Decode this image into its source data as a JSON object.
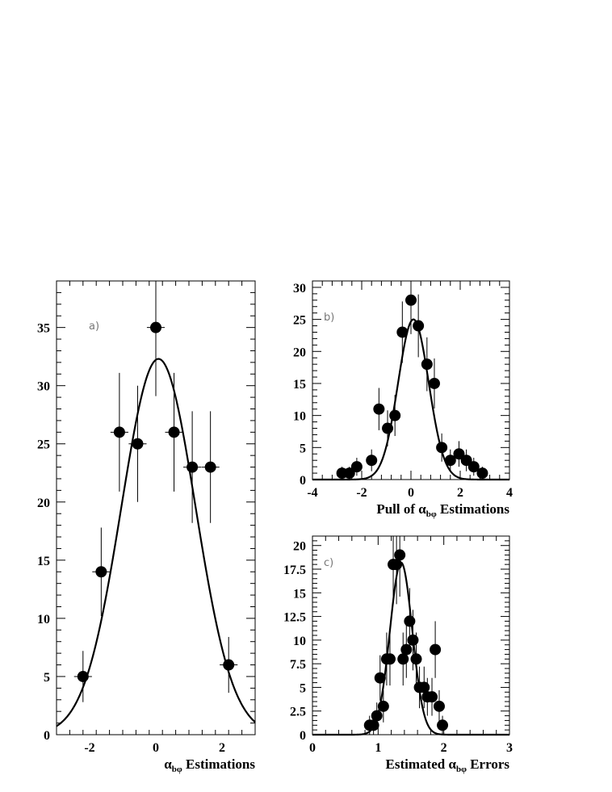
{
  "chart_data": [
    {
      "id": "a",
      "type": "scatter",
      "panel_label": "a)",
      "xlabel": {
        "greek": "α",
        "sub": "bφ",
        "rest": " Estimations"
      },
      "xlim": [
        -3.0,
        3.0
      ],
      "ylim": [
        0,
        39
      ],
      "xticks": [
        -2,
        0,
        2
      ],
      "xtick_labels": [
        "-2",
        "0",
        "2"
      ],
      "yticks": [
        0,
        5,
        10,
        15,
        20,
        25,
        30,
        35
      ],
      "ytick_labels": [
        "0",
        "5",
        "10",
        "15",
        "20",
        "25",
        "30",
        "35"
      ],
      "points": [
        {
          "x": -2.2,
          "y": 5,
          "xerr": 0.27,
          "yerr": 2.2
        },
        {
          "x": -1.65,
          "y": 14,
          "xerr": 0.27,
          "yerr": 3.8
        },
        {
          "x": -1.1,
          "y": 26,
          "xerr": 0.27,
          "yerr": 5.1
        },
        {
          "x": -0.55,
          "y": 25,
          "xerr": 0.27,
          "yerr": 5.0
        },
        {
          "x": 0.0,
          "y": 35,
          "xerr": 0.27,
          "yerr": 5.9
        },
        {
          "x": 0.55,
          "y": 26,
          "xerr": 0.27,
          "yerr": 5.1
        },
        {
          "x": 1.1,
          "y": 23,
          "xerr": 0.27,
          "yerr": 4.8
        },
        {
          "x": 1.65,
          "y": 23,
          "xerr": 0.27,
          "yerr": 4.8
        },
        {
          "x": 2.2,
          "y": 6,
          "xerr": 0.27,
          "yerr": 2.4
        }
      ],
      "fit": {
        "shape": "gaussian",
        "amplitude": 32.3,
        "mean": 0.08,
        "sigma": 1.12
      }
    },
    {
      "id": "b",
      "type": "scatter",
      "panel_label": "b)",
      "xlabel": {
        "prefix": "Pull of ",
        "greek": "α",
        "sub": "bφ",
        "rest": " Estimations"
      },
      "xlim": [
        -4,
        4
      ],
      "ylim": [
        0,
        31
      ],
      "xticks": [
        -4,
        -2,
        0,
        2,
        4
      ],
      "xtick_labels": [
        "-4",
        "-2",
        "0",
        "2",
        "4"
      ],
      "yticks": [
        0,
        5,
        10,
        15,
        20,
        25,
        30
      ],
      "ytick_labels": [
        "0",
        "5",
        "10",
        "15",
        "20",
        "25",
        "30"
      ],
      "points": [
        {
          "x": -2.8,
          "y": 1,
          "yerr": 1.0
        },
        {
          "x": -2.5,
          "y": 1,
          "yerr": 1.0
        },
        {
          "x": -2.2,
          "y": 2,
          "yerr": 1.4
        },
        {
          "x": -1.6,
          "y": 3,
          "yerr": 1.7
        },
        {
          "x": -1.3,
          "y": 11,
          "yerr": 3.3
        },
        {
          "x": -0.95,
          "y": 8,
          "yerr": 2.8
        },
        {
          "x": -0.65,
          "y": 10,
          "yerr": 3.2
        },
        {
          "x": -0.35,
          "y": 23,
          "yerr": 4.8
        },
        {
          "x": 0.0,
          "y": 28,
          "yerr": 5.3
        },
        {
          "x": 0.3,
          "y": 24,
          "yerr": 4.9
        },
        {
          "x": 0.65,
          "y": 18,
          "yerr": 4.2
        },
        {
          "x": 0.95,
          "y": 15,
          "yerr": 3.9
        },
        {
          "x": 1.25,
          "y": 5,
          "yerr": 2.2
        },
        {
          "x": 1.6,
          "y": 3,
          "yerr": 1.7
        },
        {
          "x": 1.95,
          "y": 4,
          "yerr": 2.0
        },
        {
          "x": 2.25,
          "y": 3,
          "yerr": 1.7
        },
        {
          "x": 2.55,
          "y": 2,
          "yerr": 1.4
        },
        {
          "x": 2.9,
          "y": 1,
          "yerr": 1.0
        }
      ],
      "fit": {
        "shape": "gaussian",
        "amplitude": 25.0,
        "mean": 0.1,
        "sigma": 0.62
      }
    },
    {
      "id": "c",
      "type": "scatter",
      "panel_label": "c)",
      "xlabel": {
        "prefix": "Estimated ",
        "greek": "α",
        "sub": "bφ",
        "rest": " Errors"
      },
      "xlim": [
        0,
        3
      ],
      "ylim": [
        0,
        21
      ],
      "xticks": [
        0,
        1,
        2,
        3
      ],
      "xtick_labels": [
        "0",
        "1",
        "2",
        "3"
      ],
      "yticks": [
        0,
        2.5,
        5,
        7.5,
        10,
        12.5,
        15,
        17.5,
        20
      ],
      "ytick_labels": [
        "0",
        "2.5",
        "5",
        "7.5",
        "10",
        "12.5",
        "15",
        "17.5",
        "20"
      ],
      "points": [
        {
          "x": 0.87,
          "y": 1,
          "yerr": 1.0
        },
        {
          "x": 0.93,
          "y": 1,
          "yerr": 1.0
        },
        {
          "x": 0.98,
          "y": 2,
          "yerr": 1.4
        },
        {
          "x": 1.03,
          "y": 6,
          "yerr": 2.4
        },
        {
          "x": 1.08,
          "y": 3,
          "yerr": 1.7
        },
        {
          "x": 1.13,
          "y": 8,
          "yerr": 2.8
        },
        {
          "x": 1.18,
          "y": 8,
          "yerr": 2.8
        },
        {
          "x": 1.23,
          "y": 18,
          "yerr": 4.2
        },
        {
          "x": 1.28,
          "y": 18,
          "yerr": 4.2
        },
        {
          "x": 1.33,
          "y": 19,
          "yerr": 4.4
        },
        {
          "x": 1.38,
          "y": 8,
          "yerr": 2.8
        },
        {
          "x": 1.43,
          "y": 9,
          "yerr": 3.0
        },
        {
          "x": 1.48,
          "y": 12,
          "yerr": 3.5
        },
        {
          "x": 1.53,
          "y": 10,
          "yerr": 3.2
        },
        {
          "x": 1.58,
          "y": 8,
          "yerr": 2.8
        },
        {
          "x": 1.63,
          "y": 5,
          "yerr": 2.2
        },
        {
          "x": 1.7,
          "y": 5,
          "yerr": 2.2
        },
        {
          "x": 1.75,
          "y": 4,
          "yerr": 2.0
        },
        {
          "x": 1.82,
          "y": 4,
          "yerr": 2.0
        },
        {
          "x": 1.87,
          "y": 9,
          "yerr": 3.0
        },
        {
          "x": 1.93,
          "y": 3,
          "yerr": 1.7
        },
        {
          "x": 1.98,
          "y": 1,
          "yerr": 1.0
        }
      ],
      "fit": {
        "shape": "gaussian",
        "amplitude": 18.2,
        "mean": 1.35,
        "sigma": 0.17
      }
    }
  ]
}
